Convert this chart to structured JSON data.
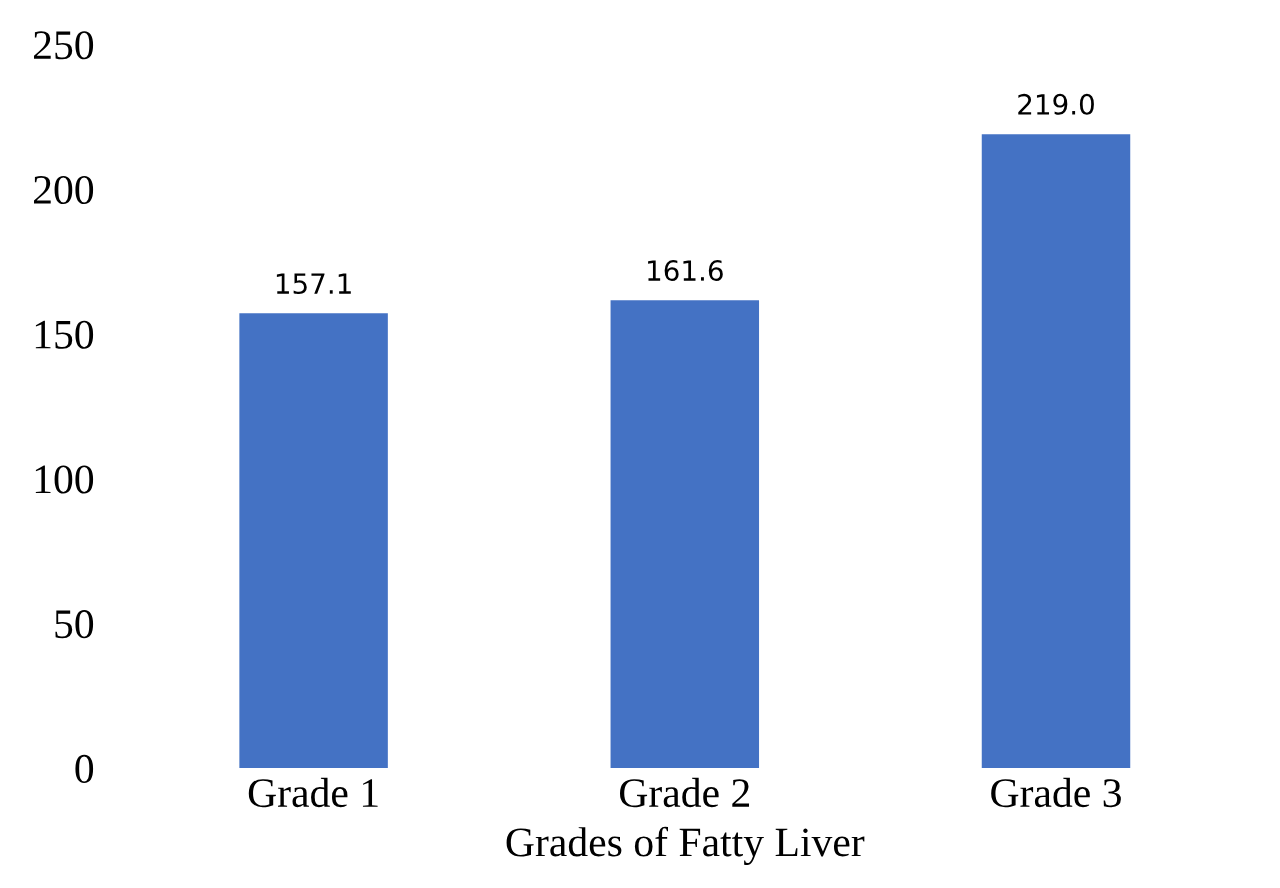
{
  "chart_data": {
    "type": "bar",
    "xlabel": "Grades of Fatty Liver",
    "categories": [
      "Grade 1",
      "Grade 2",
      "Grade 3"
    ],
    "values": [
      157.1,
      161.6,
      219.0
    ],
    "value_labels": [
      "157.1",
      "161.6",
      "219.0"
    ],
    "color": "#4472c4",
    "ylim": [
      0,
      250
    ],
    "yticks": [
      0,
      50,
      100,
      150,
      200,
      250
    ],
    "grid": false,
    "legend": false
  }
}
